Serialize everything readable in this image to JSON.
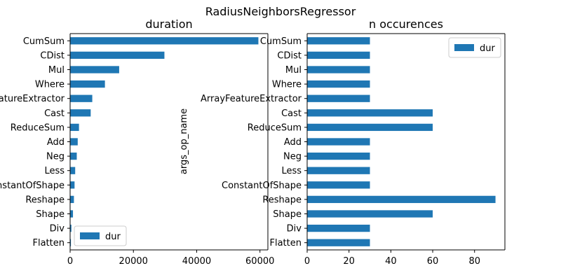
{
  "figure": {
    "suptitle": "RadiusNeighborsRegressor"
  },
  "chart_data": [
    {
      "type": "bar",
      "orientation": "horizontal",
      "title": "duration",
      "xlabel": "",
      "ylabel": "",
      "categories": [
        "CumSum",
        "CDist",
        "Mul",
        "Where",
        "ArrayFeatureExtractor",
        "Cast",
        "ReduceSum",
        "Add",
        "Neg",
        "Less",
        "ConstantOfShape",
        "Reshape",
        "Shape",
        "Div",
        "Flatten"
      ],
      "series": [
        {
          "name": "dur",
          "values": [
            59500,
            29800,
            15500,
            11000,
            7000,
            6500,
            2800,
            2400,
            2100,
            1600,
            1400,
            1200,
            900,
            400,
            250
          ]
        }
      ],
      "xlim": [
        0,
        62500
      ],
      "xticks": [
        0,
        20000,
        40000,
        60000
      ],
      "legend": "lower-left",
      "grid": false,
      "bar_color": "#1f77b4"
    },
    {
      "type": "bar",
      "orientation": "horizontal",
      "title": "n occurences",
      "xlabel": "",
      "ylabel": "args_op_name",
      "categories": [
        "CumSum",
        "CDist",
        "Mul",
        "Where",
        "ArrayFeatureExtractor",
        "Cast",
        "ReduceSum",
        "Add",
        "Neg",
        "Less",
        "ConstantOfShape",
        "Reshape",
        "Shape",
        "Div",
        "Flatten"
      ],
      "series": [
        {
          "name": "dur",
          "values": [
            30,
            30,
            30,
            30,
            30,
            60,
            60,
            30,
            30,
            30,
            30,
            90,
            60,
            30,
            30
          ]
        }
      ],
      "xlim": [
        0,
        94.5
      ],
      "xticks": [
        0,
        20,
        40,
        60,
        80
      ],
      "legend": "upper-right",
      "grid": false,
      "bar_color": "#1f77b4"
    }
  ]
}
